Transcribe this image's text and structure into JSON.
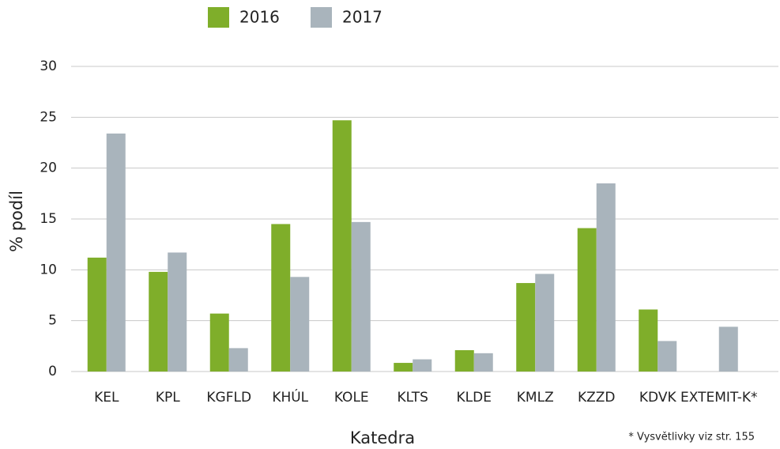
{
  "chart_data": {
    "type": "bar",
    "x_label": "Katedra",
    "y_label": "% podíl",
    "annotation": "* Vysvětlivky viz str. 155",
    "categories": [
      "KEL",
      "KPL",
      "KGFLD",
      "KHÚL",
      "KOLE",
      "KLTS",
      "KLDE",
      "KMLZ",
      "KZZD",
      "KDVK",
      "EXTEMIT-K*"
    ],
    "series": [
      {
        "name": "2016",
        "color": "#7fae2a",
        "values": [
          11.2,
          9.8,
          5.7,
          14.5,
          24.7,
          0.85,
          2.1,
          8.7,
          14.1,
          6.1,
          null
        ]
      },
      {
        "name": "2017",
        "color": "#a9b4bc",
        "values": [
          23.4,
          11.7,
          2.3,
          9.3,
          14.7,
          1.2,
          1.8,
          9.6,
          18.5,
          3.0,
          4.4
        ]
      }
    ],
    "ylim": [
      0,
      30
    ],
    "yticks": [
      0,
      5,
      10,
      15,
      20,
      25,
      30
    ],
    "grid": true,
    "legend": "top"
  }
}
